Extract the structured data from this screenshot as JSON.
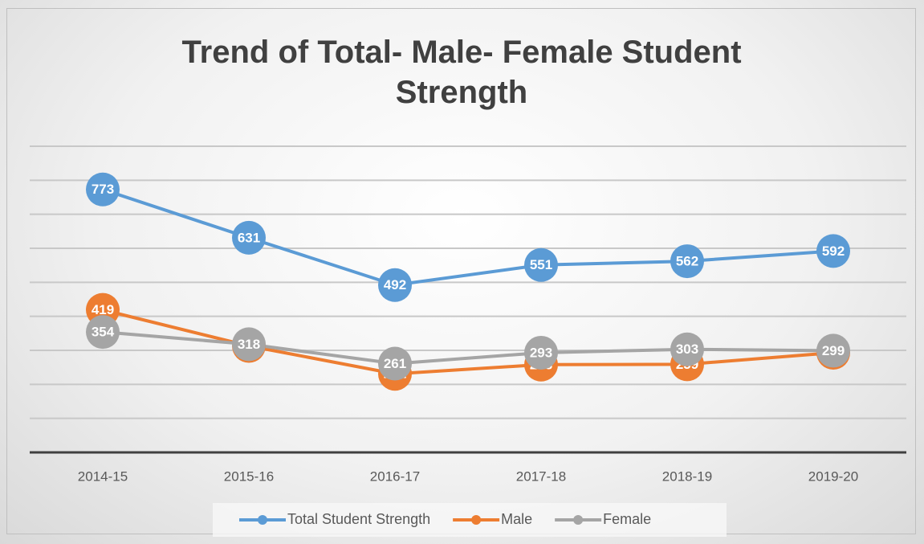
{
  "chart_data": {
    "type": "line",
    "title": "Trend of Total- Male- Female Student Strength",
    "categories": [
      "2014-15",
      "2015-16",
      "2016-17",
      "2017-18",
      "2018-19",
      "2019-20"
    ],
    "series": [
      {
        "name": "Total Student Strength",
        "color": "#5b9bd5",
        "values": [
          773,
          631,
          492,
          551,
          562,
          592
        ]
      },
      {
        "name": "Male",
        "color": "#ed7d31",
        "values": [
          419,
          313,
          231,
          258,
          259,
          293
        ]
      },
      {
        "name": "Female",
        "color": "#a5a5a5",
        "values": [
          354,
          318,
          261,
          293,
          303,
          299
        ]
      }
    ],
    "ylim": [
      0,
      900
    ],
    "yticks": [
      0,
      100,
      200,
      300,
      400,
      500,
      600,
      700,
      800,
      900
    ],
    "grid": true,
    "legend": "bottom"
  }
}
